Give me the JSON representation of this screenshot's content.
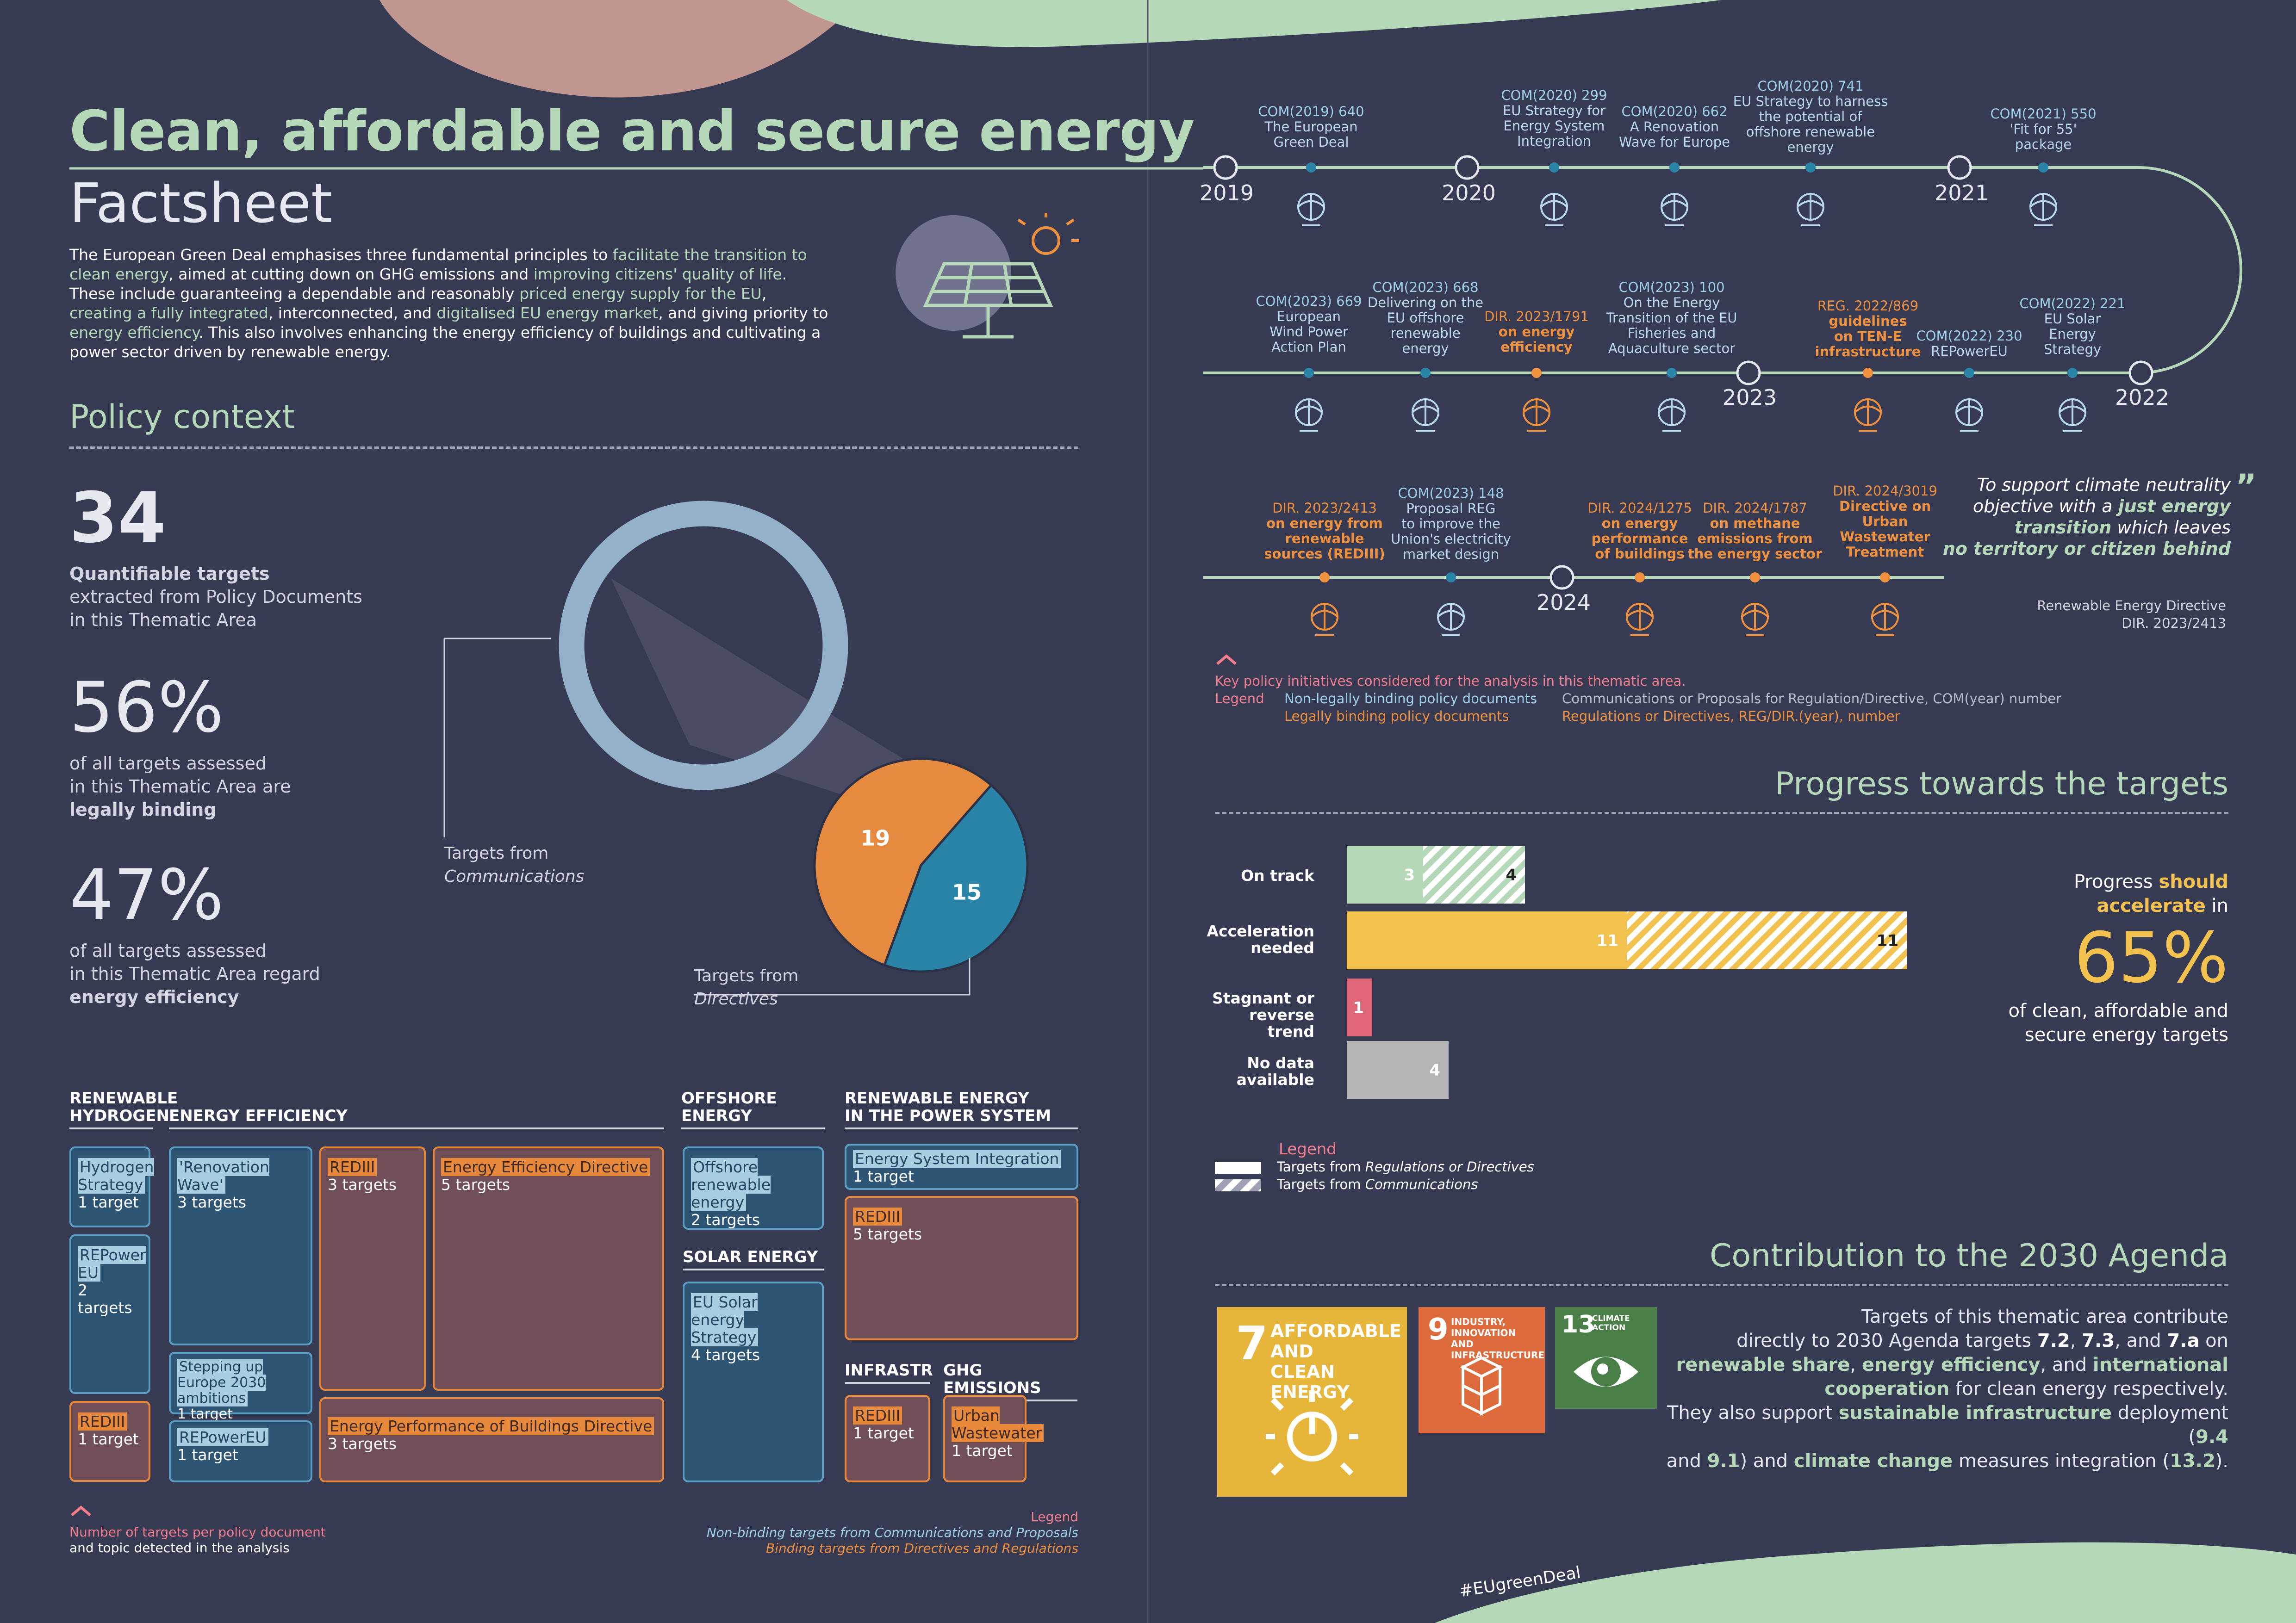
{
  "header": {
    "title": "Clean, affordable and secure energy",
    "subtitle": "Factsheet",
    "intro_1": "The European Green Deal emphasises three fundamental principles to ",
    "intro_hl1": "facilitate the transition to clean energy",
    "intro_2": ", aimed at cutting down on GHG emissions and ",
    "intro_hl2": "improving citizens' quality of life",
    "intro_3": ". These include guaranteeing a dependable and reasonably ",
    "intro_hl3": "priced energy supply for the EU",
    "intro_4": ", ",
    "intro_hl4": "creating a fully integrated",
    "intro_5": ", interconnected, and ",
    "intro_hl5": "digitalised EU energy market",
    "intro_6": ", and giving priority to ",
    "intro_hl6": "energy efficiency",
    "intro_7": ". This also involves enhancing the energy efficiency of buildings and cultivating a power sector driven by renewable energy."
  },
  "policy_context": {
    "title": "Policy context",
    "stat1": {
      "value": "34",
      "bold": "Quantifiable targets",
      "text1": "extracted from Policy Documents",
      "text2": "in this Thematic Area"
    },
    "stat2": {
      "value": "56%",
      "text1": "of all targets assessed",
      "text2": "in this Thematic Area are",
      "bold": "legally binding"
    },
    "stat3": {
      "value": "47%",
      "text1": "of all targets assessed",
      "text2": "in this Thematic Area regard",
      "bold": "energy efficiency"
    },
    "pie": {
      "communications": 15,
      "directives": 19
    },
    "label_comm_1": "Targets from",
    "label_comm_2": "Communications",
    "label_dir_1": "Targets from",
    "label_dir_2": "Directives"
  },
  "chart_data": [
    {
      "type": "pie",
      "categories": [
        "Targets from Communications",
        "Targets from Directives"
      ],
      "values": [
        15,
        19
      ],
      "colors": [
        "#2a84a8",
        "#e58a3e"
      ]
    },
    {
      "type": "bar",
      "title": "Progress towards the targets",
      "categories": [
        "On track",
        "Acceleration needed",
        "Stagnant or reverse trend",
        "No data available"
      ],
      "series": [
        {
          "name": "Targets from Regulations or Directives",
          "values": [
            3,
            11,
            1,
            4
          ]
        },
        {
          "name": "Targets from Communications",
          "values": [
            4,
            11,
            0,
            0
          ]
        }
      ],
      "colors": [
        "#b5d9b8",
        "#f2c14e",
        "#e0667a",
        "#b4b4b4"
      ],
      "stacked": true
    }
  ],
  "targets": {
    "cat_hydrogen_1": "RENEWABLE",
    "cat_hydrogen_2": "HYDROGEN",
    "cat_efficiency": "ENERGY EFFICIENCY",
    "cat_offshore_1": "OFFSHORE",
    "cat_offshore_2": "ENERGY",
    "cat_power_1": "RENEWABLE ENERGY",
    "cat_power_2": "IN THE POWER SYSTEM",
    "cat_solar": "SOLAR ENERGY",
    "cat_infra": "INFRASTR",
    "cat_ghg": "GHG EMISSIONS",
    "boxes": [
      {
        "label": "Hydrogen Strategy",
        "count": "1 target"
      },
      {
        "label": "REPower EU",
        "count": "2 targets"
      },
      {
        "label": "REDIII",
        "count": "1 target"
      },
      {
        "label": "'Renovation Wave'",
        "count": "3 targets"
      },
      {
        "label": "Stepping up Europe 2030 ambitions",
        "count": "1 target"
      },
      {
        "label": "REPowerEU",
        "count": "1 target"
      },
      {
        "label": "REDIII",
        "count": "3 targets"
      },
      {
        "label": "Energy Efficiency Directive",
        "count": "5 targets"
      },
      {
        "label": "Energy Performance of Buildings Directive",
        "count": "3 targets"
      },
      {
        "label": "Offshore renewable energy",
        "count": "2 targets"
      },
      {
        "label": "EU Solar energy Strategy",
        "count": "4 targets"
      },
      {
        "label": "Energy System Integration",
        "count": "1 target"
      },
      {
        "label": "REDIII",
        "count": "5 targets"
      },
      {
        "label": "REDIII",
        "count": "1 target"
      },
      {
        "label": "Urban Wastewater",
        "count": "1 target"
      }
    ],
    "note_1": "Number of targets per policy document",
    "note_2": "and topic detected in the analysis",
    "legend_title": "Legend",
    "legend_1": "Non-binding targets from Communications and Proposals",
    "legend_2": "Binding targets from Directives and Regulations"
  },
  "timeline": {
    "years": [
      "2019",
      "2020",
      "2021",
      "2022",
      "2023",
      "2024"
    ],
    "items": [
      {
        "l1": "COM(2019) 640",
        "l2": "The European",
        "l3": "Green Deal",
        "l4": ""
      },
      {
        "l1": "COM(2020) 299",
        "l2": "EU Strategy for",
        "l3": "Energy System",
        "l4": "Integration"
      },
      {
        "l1": "COM(2020) 662",
        "l2": "A Renovation",
        "l3": "Wave for Europe",
        "l4": ""
      },
      {
        "l1": "COM(2020) 741",
        "l2": "EU Strategy to harness",
        "l3": "the potential of",
        "l4": "offshore renewable",
        "l5": "energy"
      },
      {
        "l1": "COM(2021) 550",
        "l2": "'Fit for 55'",
        "l3": "package",
        "l4": ""
      },
      {
        "l1": "COM(2023) 669",
        "l2": "European",
        "l3": "Wind Power",
        "l4": "Action Plan"
      },
      {
        "l1": "COM(2023) 668",
        "l2": "Delivering on the",
        "l3": "EU offshore",
        "l4": "renewable",
        "l5": "energy"
      },
      {
        "l1": "DIR. 2023/1791",
        "l2": "on energy",
        "l3": "efficiency",
        "l4": ""
      },
      {
        "l1": "COM(2023) 100",
        "l2": "On the Energy",
        "l3": "Transition of the EU",
        "l4": "Fisheries and",
        "l5": "Aquaculture sector"
      },
      {
        "l1": "REG. 2022/869",
        "l2": "guidelines",
        "l3": "on TEN-E",
        "l4": "infrastructure"
      },
      {
        "l1": "COM(2022) 230",
        "l2": "REPowerEU",
        "l3": "",
        "l4": ""
      },
      {
        "l1": "COM(2022) 221",
        "l2": "EU Solar",
        "l3": "Energy",
        "l4": "Strategy"
      },
      {
        "l1": "DIR. 2023/2413",
        "l2": "on energy from",
        "l3": "renewable",
        "l4": "sources (REDIII)"
      },
      {
        "l1": "COM(2023) 148",
        "l2": "Proposal REG",
        "l3": "to improve the",
        "l4": "Union's electricity",
        "l5": "market design"
      },
      {
        "l1": "DIR. 2024/1275",
        "l2": "on energy",
        "l3": "performance",
        "l4": "of buildings"
      },
      {
        "l1": "DIR. 2024/1787",
        "l2": "on methane",
        "l3": "emissions from",
        "l4": "the energy sector"
      },
      {
        "l1": "DIR. 2024/3019",
        "l2": "Directive on",
        "l3": "Urban",
        "l4": "Wastewater",
        "l5": "Treatment"
      }
    ],
    "quote_1": "To support climate neutrality",
    "quote_2a": "objective with a ",
    "quote_2b": "just energy",
    "quote_3a": "transition",
    "quote_3b": " which leaves",
    "quote_4": "no territory or citizen behind",
    "quote_src_1": "Renewable Energy Directive",
    "quote_src_2": "DIR. 2023/2413",
    "key_title": "Key policy initiatives considered for the analysis in this thematic area.",
    "legend_word": "Legend",
    "legend_nb": "Non-legally binding policy documents",
    "legend_b": "Legally binding policy documents",
    "legend_nb_desc": "Communications or Proposals for Regulation/Directive, COM(year) number",
    "legend_b_desc": "Regulations or Directives, REG/DIR.(year), number"
  },
  "progress": {
    "title": "Progress towards the targets",
    "labels": [
      [
        "On track"
      ],
      [
        "Acceleration",
        "needed"
      ],
      [
        "Stagnant or",
        "reverse trend"
      ],
      [
        "No data",
        "available"
      ]
    ],
    "legend_title": "Legend",
    "legend_1a": "Targets from ",
    "legend_1b": "Regulations or Directives",
    "legend_2a": "Targets from ",
    "legend_2b": "Communications",
    "side_1": "Progress ",
    "side_1b": "should",
    "side_2": "accelerate",
    "side_2b": " in",
    "side_pct": "65%",
    "side_3": "of clean, affordable and",
    "side_4": "secure energy targets"
  },
  "agenda": {
    "title": "Contribution to the 2030 Agenda",
    "sdg7_num": "7",
    "sdg7_1": "AFFORDABLE AND",
    "sdg7_2": "CLEAN ENERGY",
    "sdg9_num": "9",
    "sdg9_1": "INDUSTRY, INNOVATION",
    "sdg9_2": "AND INFRASTRUCTURE",
    "sdg13_num": "13",
    "sdg13_1": "CLIMATE",
    "sdg13_2": "ACTION",
    "p1": "Targets of this thematic area contribute",
    "p2a": "directly to 2030 Agenda targets ",
    "p2b": "7.2",
    "p2c": ", ",
    "p2d": "7.3",
    "p2e": ", and ",
    "p2f": "7.a",
    "p2g": " on",
    "p3a": "renewable share",
    "p3b": ", ",
    "p3c": "energy efficiency",
    "p3d": ", and ",
    "p3e": "international",
    "p4a": "cooperation",
    "p4b": " for clean energy respectively.",
    "p5a": "They also support ",
    "p5b": "sustainable infrastructure",
    "p5c": " deployment (",
    "p5d": "9.4",
    "p6a": "and ",
    "p6b": "9.1",
    "p6c": ") and ",
    "p6d": "climate change",
    "p6e": " measures integration (",
    "p6f": "13.2",
    "p6g": ")."
  },
  "footer": {
    "hashtag": "#EUgreenDeal"
  }
}
